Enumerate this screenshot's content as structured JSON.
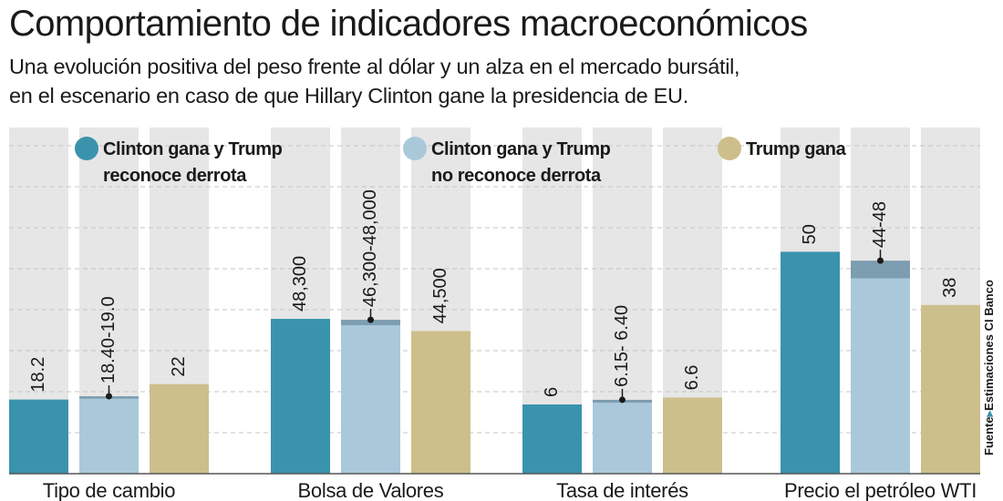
{
  "title": "Comportamiento de indicadores macroeconómicos",
  "subtitle_line1": "Una evolución positiva del peso frente al dólar y un alza en  el mercado bursátil,",
  "subtitle_line2": "en el escenario en caso de que Hillary Clinton gane la presidencia de EU.",
  "source": {
    "prefix": "Fuente",
    "text": "Estimaciones CI Banco"
  },
  "colors": {
    "clinton_concede": "#3a93ac",
    "clinton_no_concede": "#a9c9db",
    "clinton_no_concede_range": "#7d9db0",
    "trump_wins": "#cdbf8c",
    "panel_bg": "#e6e6e6",
    "accent_arrow": "#3a93ac"
  },
  "chart_data": {
    "type": "bar",
    "title": "Comportamiento de indicadores macroeconómicos",
    "grouping": "each indicator drawn on its own relative scale",
    "legend": [
      {
        "id": "s1",
        "line1": "Clinton gana y Trump",
        "line2": "reconoce derrota"
      },
      {
        "id": "s2",
        "line1": "Clinton gana y Trump",
        "line2": "no reconoce derrota"
      },
      {
        "id": "s3",
        "line1": "Trump gana",
        "line2": ""
      }
    ],
    "categories": [
      "Tipo de cambio",
      "Bolsa de Valores",
      "Tasa de interés",
      "Precio el petróleo WTI"
    ],
    "series": [
      {
        "id": "s1",
        "name": "Clinton gana y Trump reconoce derrota",
        "values": [
          18.2,
          48300,
          6,
          50
        ],
        "labels": [
          "18.2",
          "48,300",
          "6",
          "50"
        ]
      },
      {
        "id": "s2",
        "name": "Clinton gana y Trump no reconoce derrota",
        "low": [
          18.4,
          46300,
          6.15,
          44
        ],
        "high": [
          19.0,
          48000,
          6.4,
          48
        ],
        "labels": [
          "18.40-19.0",
          "46,300-48,000",
          "6.15- 6.40",
          "44-48"
        ]
      },
      {
        "id": "s3",
        "name": "Trump gana",
        "values": [
          22,
          44500,
          6.6,
          38
        ],
        "labels": [
          "22",
          "44,500",
          "6.6",
          "38"
        ]
      }
    ],
    "category_ranges": [
      [
        0,
        85
      ],
      [
        0,
        108000
      ],
      [
        0,
        30
      ],
      [
        0,
        78
      ]
    ],
    "grid": true,
    "legend_position": "top"
  }
}
